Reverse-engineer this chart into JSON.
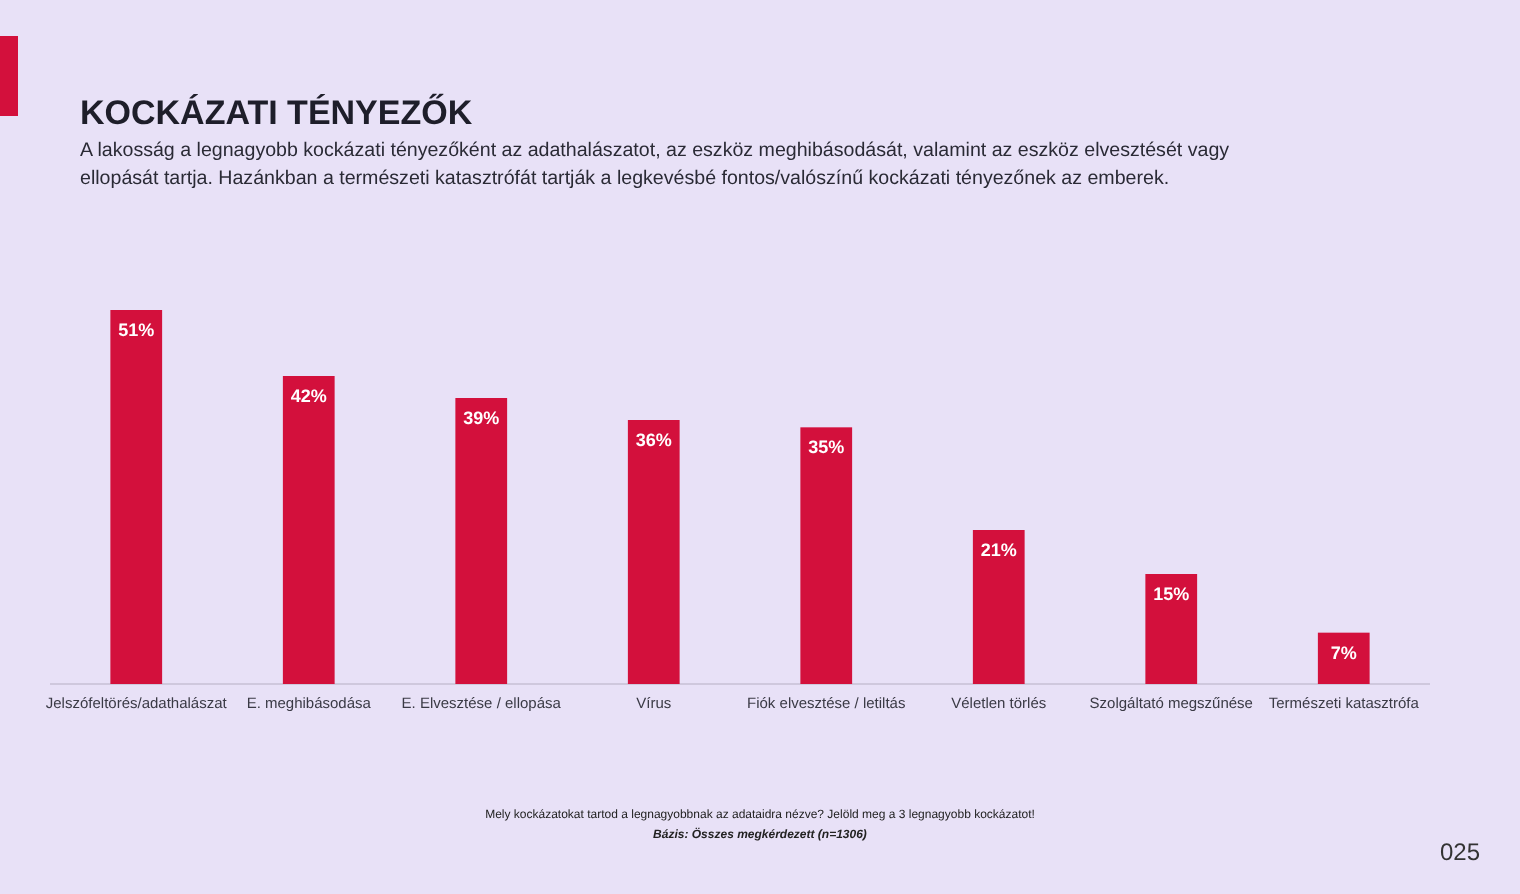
{
  "chart_data": {
    "type": "bar",
    "title": "KOCKÁZATI TÉNYEZŐK",
    "subtitle": "A lakosság a legnagyobb kockázati tényezőként az adathalászatot, az eszköz meghibásodását, valamint az eszköz elvesztését vagy ellopását tartja. Hazánkban a természeti katasztrófát tartják a legkevésbé fontos/valószínű kockázati tényezőnek az emberek.",
    "categories": [
      "Jelszófeltörés/adathalászat",
      "E. meghibásodása",
      "E. Elvesztése / ellopása",
      "Vírus",
      "Fiók elvesztése / letiltás",
      "Véletlen törlés",
      "Szolgáltató megszűnése",
      "Természeti katasztrófa"
    ],
    "values": [
      51,
      42,
      39,
      36,
      35,
      21,
      15,
      7
    ],
    "value_labels": [
      "51%",
      "42%",
      "39%",
      "36%",
      "35%",
      "21%",
      "15%",
      "7%"
    ],
    "color": "#d3103c",
    "annotations": [
      "Mely kockázatokat tartod a legnagyobbnak az adataidra nézve? Jelöld meg a 3 legnagyobb kockázatot!",
      "Bázis: Összes megkérdezett (n=1306)",
      "025"
    ]
  }
}
